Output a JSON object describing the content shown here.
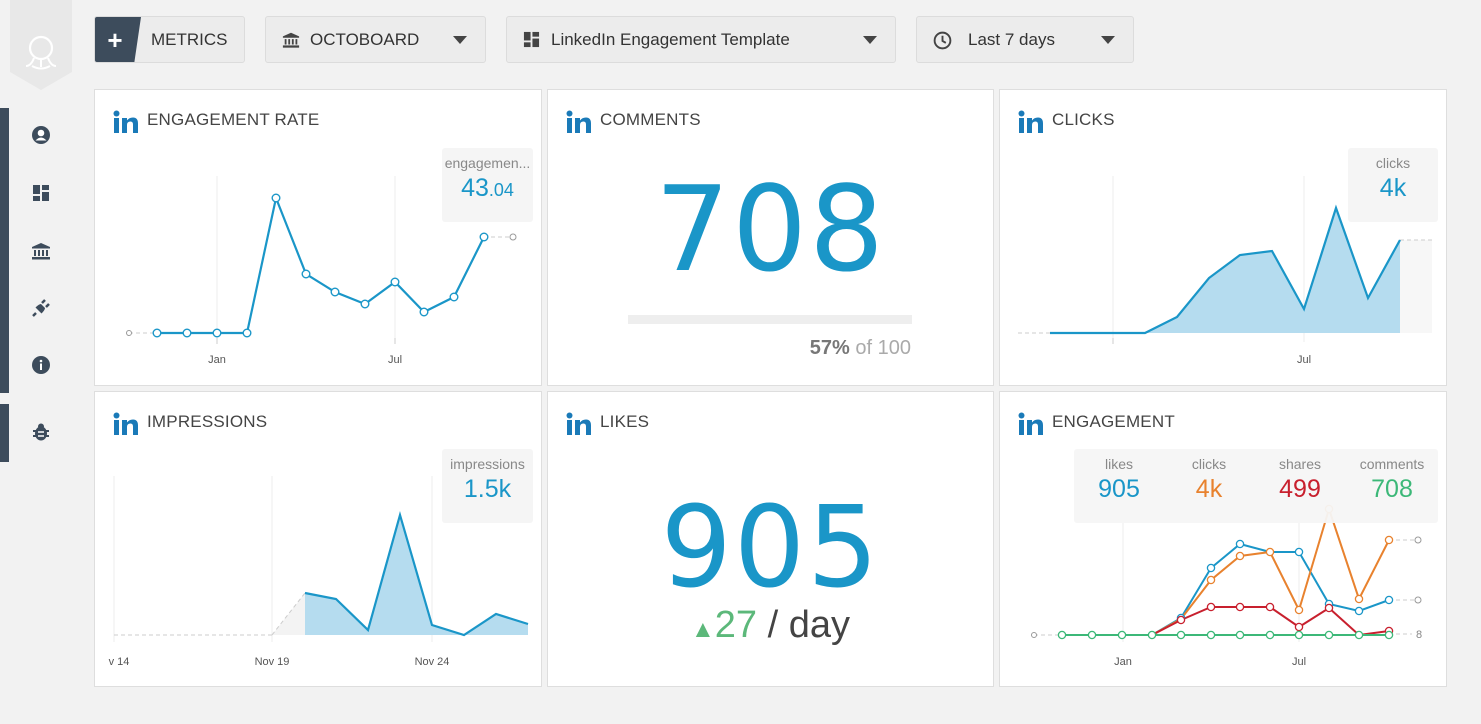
{
  "toolbar": {
    "metrics_label": "METRICS",
    "plus_label": "+",
    "datasource_label": "OCTOBOARD",
    "template_label": "LinkedIn Engagement Template",
    "daterange_label": "Last 7 days"
  },
  "sidebar": {
    "items": [
      {
        "name": "account-icon"
      },
      {
        "name": "dashboard-icon"
      },
      {
        "name": "bank-icon"
      },
      {
        "name": "plug-icon"
      },
      {
        "name": "info-icon"
      },
      {
        "name": "bug-icon"
      }
    ]
  },
  "colors": {
    "accent": "#1a96c8",
    "sidebar": "#3d4c5c",
    "green": "#5cb87a",
    "orange": "#e8822e",
    "red": "#c8202e",
    "teal": "#3cb878"
  },
  "cards": {
    "engagement_rate": {
      "title": "ENGAGEMENT RATE",
      "stat_label": "engagemen...",
      "stat_int": "43",
      "stat_dec": ".04",
      "ticks": [
        "Jan",
        "Jul"
      ]
    },
    "comments": {
      "title": "COMMENTS",
      "value": "708",
      "percent": "57%",
      "of_text": "of 100",
      "progress": 0.57
    },
    "clicks": {
      "title": "CLICKS",
      "stat_label": "clicks",
      "stat_value": "4k",
      "ticks": [
        "Jul"
      ]
    },
    "impressions": {
      "title": "IMPRESSIONS",
      "stat_label": "impressions",
      "stat_value": "1.5k",
      "ticks": [
        "v 14",
        "Nov 19",
        "Nov 24"
      ]
    },
    "likes": {
      "title": "LIKES",
      "value": "905",
      "delta_arrow": "▲",
      "delta": "27",
      "per_day": "/ day"
    },
    "engagement": {
      "title": "ENGAGEMENT",
      "legend": [
        {
          "label": "likes",
          "value": "905",
          "color": "#1a96c8"
        },
        {
          "label": "clicks",
          "value": "4k",
          "color": "#e8822e"
        },
        {
          "label": "shares",
          "value": "499",
          "color": "#c8202e"
        },
        {
          "label": "comments",
          "value": "708",
          "color": "#3cb878"
        }
      ],
      "ticks": [
        "Jan",
        "Jul"
      ]
    }
  }
}
